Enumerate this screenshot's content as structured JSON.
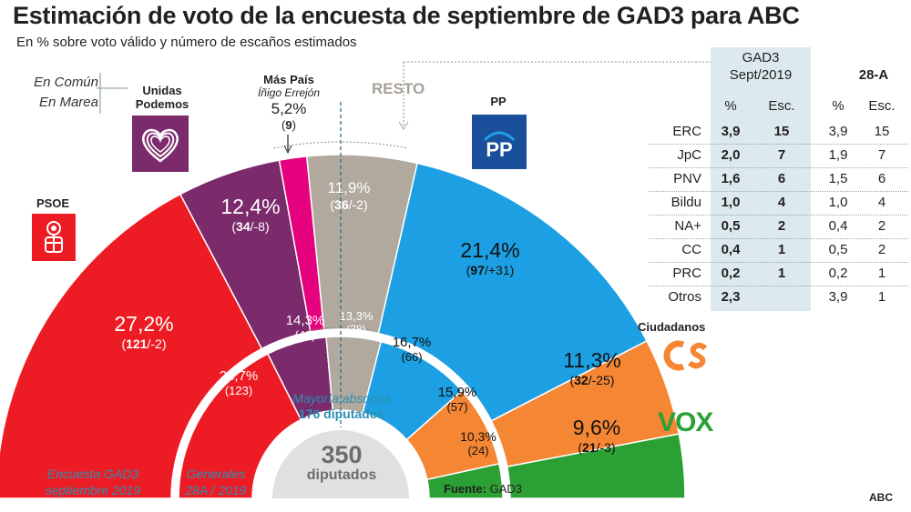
{
  "title": "Estimación de voto de la encuesta de septiembre de GAD3 para ABC",
  "subtitle": "En % sobre voto válido y número de escaños estimados",
  "chart_data": {
    "type": "hemicycle",
    "total_seats": 350,
    "majority": {
      "line1": "Mayoría absoluta",
      "line2": "176 diputados"
    },
    "center": {
      "number": "350",
      "label": "diputados"
    },
    "outer_ring": {
      "label_line1": "Encuesta GAD3",
      "label_line2": "septiembre 2019",
      "parties": [
        {
          "key": "psoe",
          "pct": 27.2,
          "pct_text": "27,2%",
          "seats": 121,
          "seats_text": "121",
          "diff_text": "/-2",
          "color": "#ed1c24"
        },
        {
          "key": "podemos",
          "pct": 12.4,
          "pct_text": "12,4%",
          "seats": 34,
          "seats_text": "34",
          "diff_text": "/-8",
          "color": "#7b2a6b"
        },
        {
          "key": "maspais",
          "pct": 5.2,
          "seats": 9,
          "color": "#e5007d"
        },
        {
          "key": "resto",
          "pct": 11.9,
          "pct_text": "11,9%",
          "seats": 36,
          "seats_text": "36",
          "diff_text": "/-2",
          "color": "#b1a99e"
        },
        {
          "key": "pp",
          "pct": 21.4,
          "pct_text": "21,4%",
          "seats": 97,
          "seats_text": "97",
          "diff_text": "/+31",
          "color": "#1ca0e3"
        },
        {
          "key": "cs",
          "pct": 11.3,
          "pct_text": "11,3%",
          "seats": 32,
          "seats_text": "32",
          "diff_text": "/-25",
          "color": "#f58634"
        },
        {
          "key": "vox",
          "pct": 9.6,
          "pct_text": "9,6%",
          "seats": 21,
          "seats_text": "21",
          "diff_text": "/-3",
          "color": "#2aa035"
        }
      ]
    },
    "inner_ring": {
      "label_line1": "Generales",
      "label_line2": "28A / 2019",
      "parties": [
        {
          "key": "psoe",
          "pct": 28.7,
          "pct_text": "28,7%",
          "seats": 123,
          "seats_text": "(123)",
          "color": "#ed1c24"
        },
        {
          "key": "podemos",
          "pct": 14.3,
          "pct_text": "14,3%",
          "seats": 42,
          "seats_text": "(42)",
          "color": "#7b2a6b"
        },
        {
          "key": "resto",
          "pct": 13.3,
          "pct_text": "13,3%",
          "seats": 38,
          "seats_text": "(38)",
          "color": "#b1a99e"
        },
        {
          "key": "pp",
          "pct": 16.7,
          "pct_text": "16,7%",
          "seats": 66,
          "seats_text": "(66)",
          "color": "#1ca0e3"
        },
        {
          "key": "cs",
          "pct": 15.9,
          "pct_text": "15,9%",
          "seats": 57,
          "seats_text": "(57)",
          "color": "#f58634"
        },
        {
          "key": "vox",
          "pct": 10.3,
          "pct_text": "10,3%",
          "seats": 24,
          "seats_text": "(24)",
          "color": "#2aa035"
        }
      ]
    }
  },
  "party_labels": {
    "en_comun_1": "En Común",
    "en_comun_2": "En Marea",
    "unidas_podemos_1": "Unidas",
    "unidas_podemos_2": "Podemos",
    "mas_pais_1": "Más País",
    "mas_pais_2": "Íñigo Errejón",
    "mas_pais_pct": "5,2%",
    "mas_pais_seats": "9",
    "resto": "RESTO",
    "pp": "PP",
    "pp_logo": "PP",
    "psoe": "PSOE",
    "ciudadanos": "Ciudadanos",
    "vox": "VOX"
  },
  "table": {
    "header_1": "GAD3",
    "header_2": "Sept/2019",
    "header_28a": "28-A",
    "col_pct": "%",
    "col_esc": "Esc.",
    "rows": [
      {
        "label": "ERC",
        "pct": "3,9",
        "esc": "15",
        "pct_28a": "3,9",
        "esc_28a": "15"
      },
      {
        "label": "JpC",
        "pct": "2,0",
        "esc": "7",
        "pct_28a": "1,9",
        "esc_28a": "7"
      },
      {
        "label": "PNV",
        "pct": "1,6",
        "esc": "6",
        "pct_28a": "1,5",
        "esc_28a": "6"
      },
      {
        "label": "Bildu",
        "pct": "1,0",
        "esc": "4",
        "pct_28a": "1,0",
        "esc_28a": "4"
      },
      {
        "label": "NA+",
        "pct": "0,5",
        "esc": "2",
        "pct_28a": "0,4",
        "esc_28a": "2"
      },
      {
        "label": "CC",
        "pct": "0,4",
        "esc": "1",
        "pct_28a": "0,5",
        "esc_28a": "2"
      },
      {
        "label": "PRC",
        "pct": "0,2",
        "esc": "1",
        "pct_28a": "0,2",
        "esc_28a": "1"
      },
      {
        "label": "Otros",
        "pct": "2,3",
        "esc": "",
        "pct_28a": "3,9",
        "esc_28a": "1"
      }
    ]
  },
  "source_label": "Fuente:",
  "source_value": "GAD3",
  "brand": "ABC",
  "icons": {
    "podemos": "heart-icon",
    "psoe": "rose-fist-icon",
    "pp": "pp-logo-icon"
  }
}
